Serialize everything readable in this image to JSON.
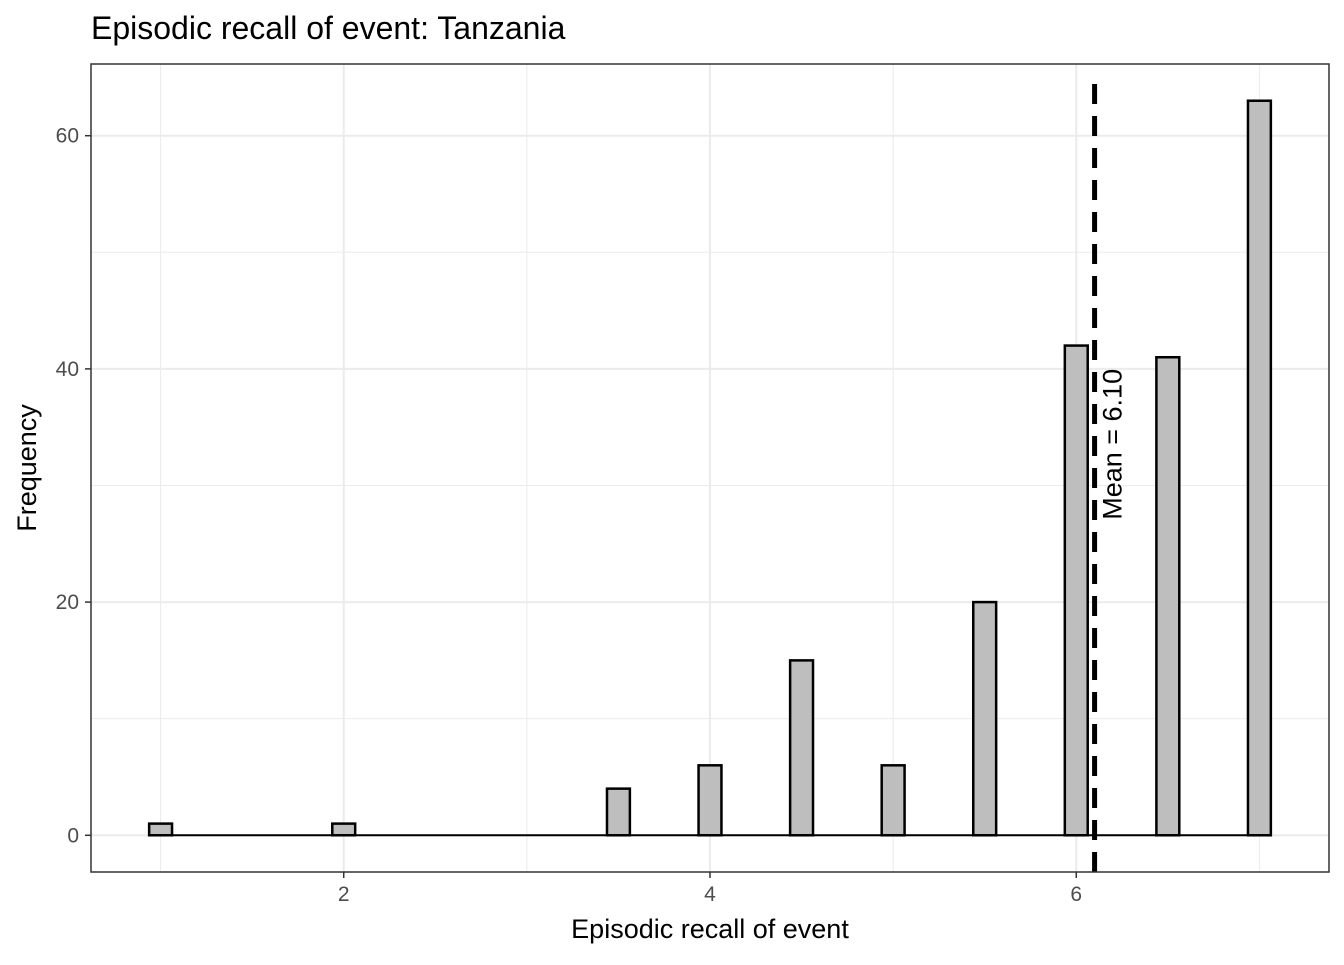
{
  "chart_data": {
    "type": "bar",
    "title": "Episodic recall of event: Tanzania",
    "xlabel": "Episodic recall of event",
    "ylabel": "Frequency",
    "x": [
      1,
      2,
      3.5,
      4,
      4.5,
      5,
      5.5,
      6,
      6.5,
      7
    ],
    "values": [
      1,
      1,
      4,
      6,
      15,
      6,
      20,
      42,
      41,
      63
    ],
    "xlim": [
      0.62,
      7.38
    ],
    "ylim": [
      -3.15,
      66.15
    ],
    "x_ticks": [
      2,
      4,
      6
    ],
    "y_ticks": [
      0,
      20,
      40,
      60
    ],
    "grid": true,
    "bar_fill": "#bebebe",
    "bar_stroke": "#000000",
    "mean_line": {
      "value": 6.1,
      "label": "Mean = 6.10",
      "style": "dashed",
      "color": "#000000"
    }
  }
}
